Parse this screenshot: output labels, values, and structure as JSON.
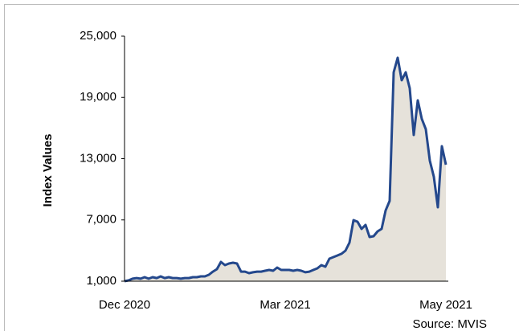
{
  "chart_data": {
    "type": "area-line",
    "y_axis_label": "Index Values",
    "source": "Source: MVIS",
    "categories": [
      "Dec 2020",
      null,
      null,
      null,
      null,
      null,
      null,
      null,
      null,
      null,
      null,
      null,
      null,
      null,
      null,
      null,
      null,
      null,
      null,
      null,
      null,
      null,
      null,
      null,
      null,
      null,
      null,
      null,
      null,
      null,
      null,
      null,
      null,
      null,
      null,
      null,
      null,
      null,
      null,
      null,
      "Mar 2021",
      null,
      null,
      null,
      null,
      null,
      null,
      null,
      null,
      null,
      null,
      null,
      null,
      null,
      null,
      null,
      null,
      null,
      null,
      null,
      null,
      null,
      null,
      null,
      null,
      null,
      null,
      null,
      null,
      null,
      null,
      null,
      null,
      null,
      null,
      null,
      null,
      null,
      null,
      null,
      "May 2021"
    ],
    "values": [
      1000,
      1080,
      1240,
      1310,
      1240,
      1390,
      1240,
      1390,
      1310,
      1470,
      1310,
      1390,
      1310,
      1310,
      1240,
      1310,
      1310,
      1390,
      1390,
      1470,
      1470,
      1630,
      1940,
      2180,
      2890,
      2570,
      2730,
      2810,
      2730,
      1940,
      1940,
      1790,
      1870,
      1940,
      1940,
      2020,
      2100,
      2020,
      2340,
      2100,
      2100,
      2100,
      2020,
      2100,
      2020,
      1870,
      1940,
      2100,
      2260,
      2570,
      2420,
      3200,
      3360,
      3520,
      3680,
      3990,
      4780,
      6980,
      6820,
      6120,
      6510,
      5330,
      5410,
      5880,
      6120,
      7930,
      8870,
      21460,
      22880,
      20680,
      21460,
      19890,
      15320,
      18710,
      16900,
      15890,
      12800,
      11230,
      8240,
      14220,
      12410
    ],
    "color": "#24488c",
    "fill_color": "#e6e2da",
    "ylim": [
      1000,
      25000
    ],
    "yticks": [
      {
        "value": 1000,
        "label": "1,000"
      },
      {
        "value": 7000,
        "label": "7,000"
      },
      {
        "value": 13000,
        "label": "13,000"
      },
      {
        "value": 19000,
        "label": "19,000"
      },
      {
        "value": 25000,
        "label": "25,000"
      }
    ],
    "grid": false
  }
}
